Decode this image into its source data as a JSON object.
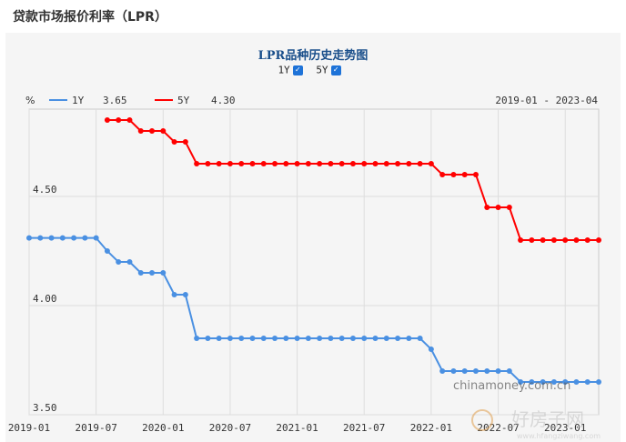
{
  "page": {
    "title": "贷款市场报价利率（LPR）"
  },
  "toggles": [
    {
      "label": "1Y",
      "checked": true
    },
    {
      "label": "5Y",
      "checked": true
    }
  ],
  "watermark": "chinamoney.com.cn",
  "watermark2": "好房子网",
  "watermark3": "www.hfangziwang.com",
  "chart_data": {
    "type": "line",
    "title": "LPR品种历史走势图",
    "ylabel": "%",
    "range_label": "2019-01 - 2023-04",
    "ylim": [
      3.5,
      4.9
    ],
    "yticks": [
      "4.50",
      "4.00",
      "3.50"
    ],
    "xticks": [
      "2019-01",
      "2019-07",
      "2020-01",
      "2020-07",
      "2021-01",
      "2021-07",
      "2022-01",
      "2022-07",
      "2023-01"
    ],
    "grid": true,
    "legend_position": "top-left",
    "series": [
      {
        "name": "1Y",
        "latest": "3.65",
        "color": "#4a90e2",
        "values": [
          4.31,
          4.31,
          4.31,
          4.31,
          4.31,
          4.31,
          4.31,
          4.25,
          4.2,
          4.2,
          4.15,
          4.15,
          4.15,
          4.05,
          4.05,
          3.85,
          3.85,
          3.85,
          3.85,
          3.85,
          3.85,
          3.85,
          3.85,
          3.85,
          3.85,
          3.85,
          3.85,
          3.85,
          3.85,
          3.85,
          3.85,
          3.85,
          3.85,
          3.85,
          3.85,
          3.85,
          3.8,
          3.7,
          3.7,
          3.7,
          3.7,
          3.7,
          3.7,
          3.7,
          3.65,
          3.65,
          3.65,
          3.65,
          3.65,
          3.65,
          3.65,
          3.65
        ]
      },
      {
        "name": "5Y",
        "latest": "4.30",
        "color": "#ff0000",
        "values": [
          null,
          null,
          null,
          null,
          null,
          null,
          null,
          4.85,
          4.85,
          4.85,
          4.8,
          4.8,
          4.8,
          4.75,
          4.75,
          4.65,
          4.65,
          4.65,
          4.65,
          4.65,
          4.65,
          4.65,
          4.65,
          4.65,
          4.65,
          4.65,
          4.65,
          4.65,
          4.65,
          4.65,
          4.65,
          4.65,
          4.65,
          4.65,
          4.65,
          4.65,
          4.65,
          4.6,
          4.6,
          4.6,
          4.6,
          4.45,
          4.45,
          4.45,
          4.3,
          4.3,
          4.3,
          4.3,
          4.3,
          4.3,
          4.3,
          4.3
        ]
      }
    ]
  }
}
